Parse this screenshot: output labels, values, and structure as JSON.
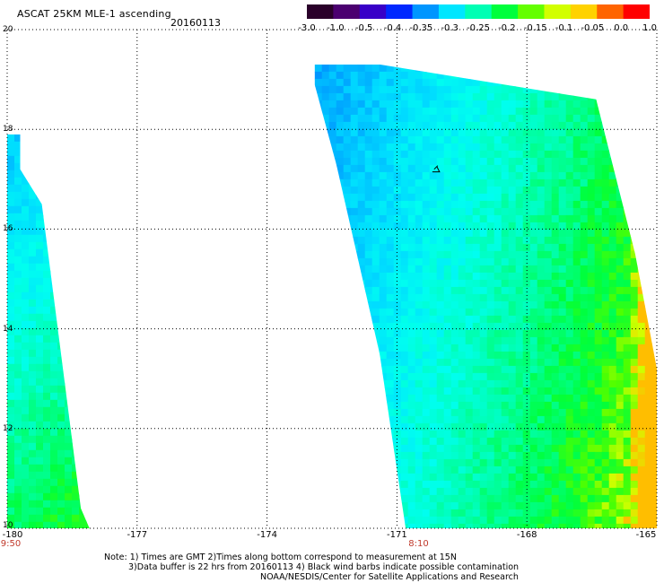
{
  "header": {
    "title": "ASCAT 25KM MLE-1 ascending",
    "date": "20160113"
  },
  "colorbar": {
    "colors": [
      "#2a002a",
      "#4b0070",
      "#3800c8",
      "#0028ff",
      "#0096ff",
      "#00e6ff",
      "#00ffb4",
      "#00ff3c",
      "#64ff00",
      "#d2ff00",
      "#ffd200",
      "#ff6400",
      "#ff0000"
    ],
    "ticks": [
      "-3.0",
      "-1.0",
      "-0.5",
      "-0.4",
      "-0.35",
      "-0.3",
      "-0.25",
      "-0.2",
      "-0.15",
      "-0.1",
      "-0.05",
      "0.0",
      "1.0"
    ]
  },
  "map": {
    "lon_range": [
      -180,
      -165
    ],
    "lat_range": [
      10,
      20
    ],
    "lat_labels": [
      "20",
      "18",
      "16",
      "14",
      "12",
      "10"
    ],
    "lon_labels": [
      "-180",
      "-177",
      "-174",
      "-171",
      "-168",
      "-165"
    ],
    "gridline_style": "dotted",
    "time_labels": [
      {
        "text": "9:50",
        "lon": -180
      },
      {
        "text": "8:10",
        "lon": -170.5
      }
    ],
    "swaths": [
      {
        "name": "west-swath",
        "polygon": [
          [
            -180,
            17.9
          ],
          [
            -179.7,
            17.9
          ],
          [
            -179.7,
            17.2
          ],
          [
            -179.2,
            16.5
          ],
          [
            -178.3,
            10.4
          ],
          [
            -178.1,
            10.0
          ],
          [
            -180,
            10.0
          ]
        ]
      },
      {
        "name": "east-swath",
        "polygon": [
          [
            -172.9,
            19.3
          ],
          [
            -171.4,
            19.3
          ],
          [
            -166.4,
            18.6
          ],
          [
            -165.5,
            15.5
          ],
          [
            -165,
            13.2
          ],
          [
            -165,
            10.0
          ],
          [
            -170.8,
            10.0
          ],
          [
            -171.4,
            13.5
          ],
          [
            -172.4,
            17.3
          ],
          [
            -172.9,
            18.9
          ]
        ]
      }
    ],
    "contamination_marker": {
      "lon": -170.1,
      "lat": 17.2
    }
  },
  "footer": {
    "note1": "Note: 1) Times are GMT 2)Times along bottom correspond to measurement at 15N",
    "note2": "3)Data buffer is 22 hrs from 20160113 4) Black wind barbs indicate possible contamination",
    "note3": "NOAA/NESDIS/Center for Satellite Applications and Research"
  }
}
